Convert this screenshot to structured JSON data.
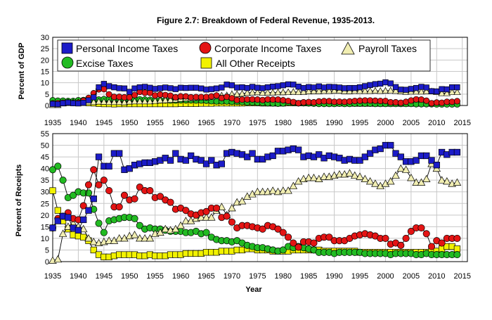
{
  "figure": {
    "title": "Figure 2.7: Breakdown of Federal Revenue, 1935-2013."
  },
  "colors": {
    "personal": "#1c1cc8",
    "corporate": "#e41414",
    "payroll": "#f1eeb2",
    "excise": "#22bb22",
    "other": "#f2f200",
    "grid": "#c8c8c8"
  },
  "legend": {
    "items": [
      {
        "key": "personal",
        "label": "Personal Income Taxes",
        "icon": "blue-square"
      },
      {
        "key": "corporate",
        "label": "Corporate Income Taxes",
        "icon": "red-circle"
      },
      {
        "key": "payroll",
        "label": "Payroll Taxes",
        "icon": "tan-triangle"
      },
      {
        "key": "excise",
        "label": "Excise Taxes",
        "icon": "green-circle"
      },
      {
        "key": "other",
        "label": "All Other Receipts",
        "icon": "yellow-square"
      }
    ]
  },
  "chart_data": [
    {
      "type": "line",
      "ylabel": "Percent of GDP",
      "ylim": [
        0,
        30
      ],
      "yticks": [
        0,
        5,
        10,
        15,
        20,
        25,
        30
      ],
      "xlim": [
        1935,
        2016
      ],
      "xticks": [
        1935,
        1940,
        1945,
        1950,
        1955,
        1960,
        1965,
        1970,
        1975,
        1980,
        1985,
        1990,
        1995,
        2000,
        2005,
        2010,
        2015
      ],
      "grid": true,
      "legend_position": "top-inside",
      "x": [
        1935,
        1936,
        1937,
        1938,
        1939,
        1940,
        1941,
        1942,
        1943,
        1944,
        1945,
        1946,
        1947,
        1948,
        1949,
        1950,
        1951,
        1952,
        1953,
        1954,
        1955,
        1956,
        1957,
        1958,
        1959,
        1960,
        1961,
        1962,
        1963,
        1964,
        1965,
        1966,
        1967,
        1968,
        1969,
        1970,
        1971,
        1972,
        1973,
        1974,
        1975,
        1976,
        1977,
        1978,
        1979,
        1980,
        1981,
        1982,
        1983,
        1984,
        1985,
        1986,
        1987,
        1988,
        1989,
        1990,
        1991,
        1992,
        1993,
        1994,
        1995,
        1996,
        1997,
        1998,
        1999,
        2000,
        2001,
        2002,
        2003,
        2004,
        2005,
        2006,
        2007,
        2008,
        2009,
        2010,
        2011,
        2012,
        2013,
        2014
      ],
      "series": [
        {
          "key": "personal",
          "name": "Personal Income Taxes",
          "marker": "square",
          "values": [
            0.7,
            0.6,
            1.0,
            1.3,
            1.0,
            0.9,
            1.2,
            2.3,
            3.6,
            8.0,
            9.5,
            8.5,
            8.0,
            7.6,
            7.5,
            6.0,
            7.5,
            8.0,
            8.2,
            7.8,
            7.3,
            7.6,
            7.9,
            7.6,
            7.2,
            7.8,
            7.7,
            7.8,
            7.8,
            7.5,
            7.0,
            7.2,
            7.5,
            7.9,
            9.2,
            8.9,
            7.9,
            8.0,
            7.7,
            8.2,
            7.8,
            7.6,
            8.0,
            8.3,
            8.5,
            8.9,
            9.3,
            9.2,
            8.3,
            7.7,
            8.1,
            7.9,
            8.4,
            7.9,
            8.2,
            8.1,
            7.9,
            7.6,
            7.7,
            7.7,
            8.0,
            8.5,
            9.0,
            9.4,
            9.6,
            10.2,
            9.7,
            8.1,
            7.0,
            6.9,
            7.3,
            7.7,
            8.2,
            7.9,
            6.3,
            6.2,
            7.2,
            7.1,
            8.0,
            8.0
          ]
        },
        {
          "key": "corporate",
          "name": "Corporate Income Taxes",
          "marker": "circle",
          "values": [
            0.9,
            1.0,
            1.2,
            1.3,
            1.1,
            1.2,
            2.1,
            3.3,
            5.4,
            7.1,
            7.2,
            4.9,
            3.8,
            3.8,
            3.6,
            3.6,
            4.6,
            6.0,
            5.6,
            5.6,
            4.4,
            4.8,
            4.6,
            4.3,
            3.6,
            4.0,
            4.0,
            3.6,
            3.7,
            3.7,
            3.7,
            4.0,
            4.4,
            3.3,
            3.8,
            3.2,
            2.4,
            2.6,
            2.7,
            2.7,
            2.6,
            2.4,
            2.7,
            2.6,
            2.6,
            2.3,
            2.0,
            1.5,
            1.0,
            1.4,
            1.5,
            1.4,
            1.8,
            1.9,
            1.9,
            1.6,
            1.7,
            1.6,
            1.8,
            2.0,
            2.1,
            2.2,
            2.2,
            2.1,
            2.0,
            2.0,
            1.4,
            1.4,
            1.2,
            1.6,
            2.2,
            2.7,
            2.6,
            2.1,
            1.0,
            1.3,
            1.2,
            1.6,
            1.6,
            1.9
          ]
        },
        {
          "key": "payroll",
          "name": "Payroll Taxes",
          "marker": "triangle",
          "values": [
            0.2,
            0.2,
            0.9,
            1.5,
            1.5,
            1.5,
            1.5,
            1.5,
            1.5,
            1.7,
            1.6,
            1.5,
            1.5,
            1.5,
            1.4,
            1.7,
            1.8,
            1.8,
            1.8,
            1.8,
            2.0,
            2.2,
            2.3,
            2.5,
            2.6,
            2.9,
            3.1,
            3.1,
            3.3,
            3.6,
            3.4,
            3.7,
            4.4,
            4.4,
            4.5,
            5.0,
            5.0,
            5.2,
            5.6,
            5.7,
            5.8,
            5.6,
            5.7,
            5.7,
            5.8,
            5.8,
            5.9,
            6.0,
            5.9,
            6.0,
            6.2,
            6.3,
            6.3,
            6.4,
            6.4,
            6.5,
            6.5,
            6.3,
            6.3,
            6.4,
            6.4,
            6.4,
            6.4,
            6.5,
            6.4,
            6.5,
            6.6,
            6.4,
            6.2,
            6.0,
            6.1,
            6.1,
            6.1,
            6.2,
            6.2,
            5.9,
            5.4,
            5.4,
            5.9,
            5.9
          ]
        },
        {
          "key": "excise",
          "name": "Excise Taxes",
          "marker": "circle",
          "values": [
            2.3,
            2.1,
            2.1,
            2.0,
            2.0,
            2.3,
            2.4,
            2.5,
            2.5,
            2.6,
            2.8,
            2.9,
            2.9,
            2.9,
            2.8,
            2.9,
            2.8,
            2.7,
            2.6,
            2.5,
            2.3,
            2.3,
            2.3,
            2.2,
            2.2,
            2.3,
            2.3,
            2.3,
            2.2,
            2.2,
            2.1,
            1.9,
            1.8,
            1.8,
            1.8,
            1.6,
            1.6,
            1.5,
            1.3,
            1.3,
            1.2,
            1.1,
            1.0,
            0.9,
            0.8,
            0.9,
            1.3,
            1.1,
            1.0,
            1.0,
            0.9,
            0.8,
            0.7,
            0.7,
            0.7,
            0.7,
            0.8,
            0.7,
            0.7,
            0.8,
            0.8,
            0.8,
            0.8,
            0.7,
            0.7,
            0.7,
            0.7,
            0.7,
            0.7,
            0.7,
            0.7,
            0.6,
            0.6,
            0.6,
            0.6,
            0.5,
            0.5,
            0.5,
            0.5,
            0.5
          ]
        },
        {
          "key": "other",
          "name": "All Other Receipts",
          "marker": "square",
          "values": [
            1.6,
            1.1,
            1.2,
            1.2,
            1.1,
            1.1,
            1.2,
            1.0,
            0.9,
            0.7,
            0.6,
            0.6,
            0.5,
            0.6,
            0.6,
            0.6,
            0.6,
            0.6,
            0.6,
            0.6,
            0.6,
            0.6,
            0.6,
            0.6,
            0.6,
            0.7,
            0.7,
            0.7,
            0.7,
            0.8,
            0.8,
            0.8,
            0.9,
            0.9,
            0.9,
            0.9,
            0.9,
            0.9,
            1.0,
            1.0,
            1.0,
            0.9,
            0.9,
            0.9,
            0.9,
            0.9,
            1.0,
            1.0,
            1.0,
            1.0,
            1.0,
            1.0,
            1.0,
            1.0,
            0.9,
            0.9,
            0.9,
            0.9,
            0.9,
            0.8,
            0.8,
            0.8,
            0.8,
            0.8,
            0.8,
            0.8,
            0.8,
            0.8,
            0.8,
            0.8,
            0.8,
            0.8,
            0.8,
            0.8,
            0.8,
            0.8,
            0.9,
            1.0,
            1.0,
            0.9
          ]
        }
      ]
    },
    {
      "type": "line",
      "ylabel": "Percent of Receipts",
      "xlabel": "Year",
      "ylim": [
        0,
        55
      ],
      "yticks": [
        0,
        5,
        10,
        15,
        20,
        25,
        30,
        35,
        40,
        45,
        50,
        55
      ],
      "xlim": [
        1935,
        2016
      ],
      "xticks": [
        1935,
        1940,
        1945,
        1950,
        1955,
        1960,
        1965,
        1970,
        1975,
        1980,
        1985,
        1990,
        1995,
        2000,
        2005,
        2010,
        2015
      ],
      "grid": true,
      "x": [
        1935,
        1936,
        1937,
        1938,
        1939,
        1940,
        1941,
        1942,
        1943,
        1944,
        1945,
        1946,
        1947,
        1948,
        1949,
        1950,
        1951,
        1952,
        1953,
        1954,
        1955,
        1956,
        1957,
        1958,
        1959,
        1960,
        1961,
        1962,
        1963,
        1964,
        1965,
        1966,
        1967,
        1968,
        1969,
        1970,
        1971,
        1972,
        1973,
        1974,
        1975,
        1976,
        1977,
        1978,
        1979,
        1980,
        1981,
        1982,
        1983,
        1984,
        1985,
        1986,
        1987,
        1988,
        1989,
        1990,
        1991,
        1992,
        1993,
        1994,
        1995,
        1996,
        1997,
        1998,
        1999,
        2000,
        2001,
        2002,
        2003,
        2004,
        2005,
        2006,
        2007,
        2008,
        2009,
        2010,
        2011,
        2012,
        2013,
        2014
      ],
      "series": [
        {
          "key": "personal",
          "name": "Personal Income Taxes",
          "marker": "square",
          "values": [
            14.5,
            17.5,
            19.5,
            19.0,
            14.5,
            13.5,
            18.0,
            22.0,
            27.0,
            45.0,
            41.0,
            41.0,
            46.5,
            46.5,
            39.5,
            40.0,
            41.5,
            42.0,
            42.5,
            42.5,
            43.0,
            43.5,
            44.5,
            43.5,
            46.5,
            44.0,
            43.5,
            45.5,
            44.0,
            43.5,
            42.0,
            43.5,
            41.5,
            42.0,
            46.5,
            47.0,
            46.5,
            46.0,
            45.0,
            46.5,
            44.0,
            44.0,
            45.0,
            45.5,
            47.5,
            47.5,
            48.0,
            48.5,
            48.0,
            45.0,
            45.5,
            45.0,
            46.0,
            44.5,
            45.5,
            45.0,
            44.5,
            43.5,
            44.0,
            43.5,
            43.5,
            45.0,
            46.5,
            48.0,
            48.5,
            50.0,
            50.0,
            46.5,
            45.0,
            43.0,
            43.0,
            43.5,
            45.5,
            45.5,
            43.5,
            41.5,
            47.0,
            46.0,
            47.0,
            47.0
          ]
        },
        {
          "key": "corporate",
          "name": "Corporate Income Taxes",
          "marker": "circle",
          "values": [
            14.5,
            18.5,
            19.5,
            21.0,
            18.5,
            18.0,
            24.0,
            33.0,
            39.5,
            33.0,
            35.0,
            30.5,
            23.5,
            23.5,
            28.5,
            26.5,
            27.0,
            32.0,
            30.5,
            30.5,
            27.5,
            28.0,
            26.5,
            25.5,
            22.5,
            23.0,
            22.0,
            20.5,
            20.0,
            21.0,
            21.5,
            23.0,
            23.0,
            19.0,
            19.5,
            17.0,
            14.5,
            15.5,
            15.5,
            15.0,
            14.5,
            14.0,
            15.5,
            15.0,
            14.0,
            12.5,
            10.5,
            8.0,
            6.2,
            8.5,
            8.5,
            8.0,
            10.0,
            10.5,
            10.5,
            9.0,
            9.0,
            9.0,
            10.0,
            11.0,
            11.5,
            12.0,
            11.5,
            11.0,
            10.0,
            10.0,
            7.5,
            8.0,
            7.0,
            10.0,
            13.0,
            14.5,
            14.5,
            12.0,
            6.5,
            9.0,
            8.0,
            10.0,
            10.0,
            10.0
          ]
        },
        {
          "key": "payroll",
          "name": "Payroll Taxes",
          "marker": "triangle",
          "values": [
            0.5,
            1.0,
            12.0,
            15.0,
            16.5,
            15.0,
            14.0,
            10.0,
            8.5,
            8.0,
            8.5,
            9.0,
            9.0,
            10.0,
            10.0,
            11.0,
            11.5,
            10.0,
            10.0,
            10.0,
            12.0,
            12.5,
            14.0,
            13.5,
            14.0,
            15.5,
            17.5,
            17.5,
            18.5,
            19.0,
            19.0,
            19.0,
            22.0,
            23.5,
            20.0,
            23.0,
            25.5,
            26.0,
            28.0,
            29.0,
            30.0,
            30.0,
            30.0,
            30.5,
            30.0,
            30.5,
            30.5,
            32.5,
            34.5,
            35.5,
            36.0,
            36.0,
            35.5,
            36.5,
            36.5,
            37.0,
            37.5,
            37.5,
            38.0,
            37.0,
            36.5,
            35.5,
            34.5,
            33.5,
            32.5,
            33.5,
            34.5,
            37.0,
            40.0,
            39.5,
            36.0,
            34.0,
            34.0,
            35.5,
            42.0,
            40.0,
            35.0,
            34.5,
            33.5,
            34.0
          ]
        },
        {
          "key": "excise",
          "name": "Excise Taxes",
          "marker": "circle",
          "values": [
            39.5,
            41.0,
            35.0,
            27.5,
            28.5,
            30.0,
            29.5,
            29.5,
            22.5,
            16.5,
            12.5,
            17.5,
            18.0,
            18.5,
            19.0,
            19.0,
            18.5,
            15.5,
            14.0,
            14.5,
            14.0,
            14.0,
            13.5,
            13.0,
            13.0,
            13.0,
            12.5,
            12.5,
            13.0,
            12.0,
            12.5,
            10.5,
            9.5,
            9.0,
            9.0,
            8.5,
            9.0,
            8.0,
            7.0,
            6.5,
            6.0,
            6.0,
            5.5,
            5.0,
            4.5,
            5.0,
            6.5,
            6.0,
            6.5,
            6.0,
            5.5,
            5.0,
            4.0,
            4.0,
            4.0,
            3.5,
            4.0,
            4.0,
            4.0,
            4.0,
            4.0,
            3.5,
            3.5,
            3.5,
            3.5,
            3.5,
            3.0,
            3.5,
            3.5,
            3.5,
            3.5,
            3.0,
            3.0,
            3.5,
            3.0,
            3.0,
            3.0,
            3.0,
            3.0,
            3.0
          ]
        },
        {
          "key": "other",
          "name": "All Other Receipts",
          "marker": "square",
          "values": [
            30.5,
            22.0,
            17.5,
            14.0,
            11.5,
            11.0,
            10.5,
            9.0,
            5.0,
            3.0,
            2.0,
            2.0,
            2.5,
            3.0,
            3.0,
            3.0,
            3.0,
            2.5,
            2.5,
            3.0,
            2.5,
            2.5,
            2.5,
            3.0,
            3.0,
            3.0,
            3.5,
            3.5,
            3.5,
            3.5,
            4.0,
            4.0,
            4.0,
            4.5,
            4.5,
            4.5,
            5.0,
            5.0,
            5.5,
            5.5,
            5.0,
            5.0,
            5.0,
            4.5,
            4.5,
            4.5,
            4.5,
            5.0,
            5.0,
            5.0,
            5.0,
            5.0,
            5.0,
            4.5,
            4.5,
            4.5,
            4.5,
            4.5,
            4.5,
            4.5,
            4.0,
            4.0,
            4.0,
            4.0,
            4.0,
            4.0,
            4.0,
            4.0,
            4.0,
            4.0,
            4.0,
            4.0,
            4.0,
            4.0,
            4.5,
            4.5,
            5.5,
            6.5,
            6.5,
            5.5
          ]
        }
      ]
    }
  ]
}
